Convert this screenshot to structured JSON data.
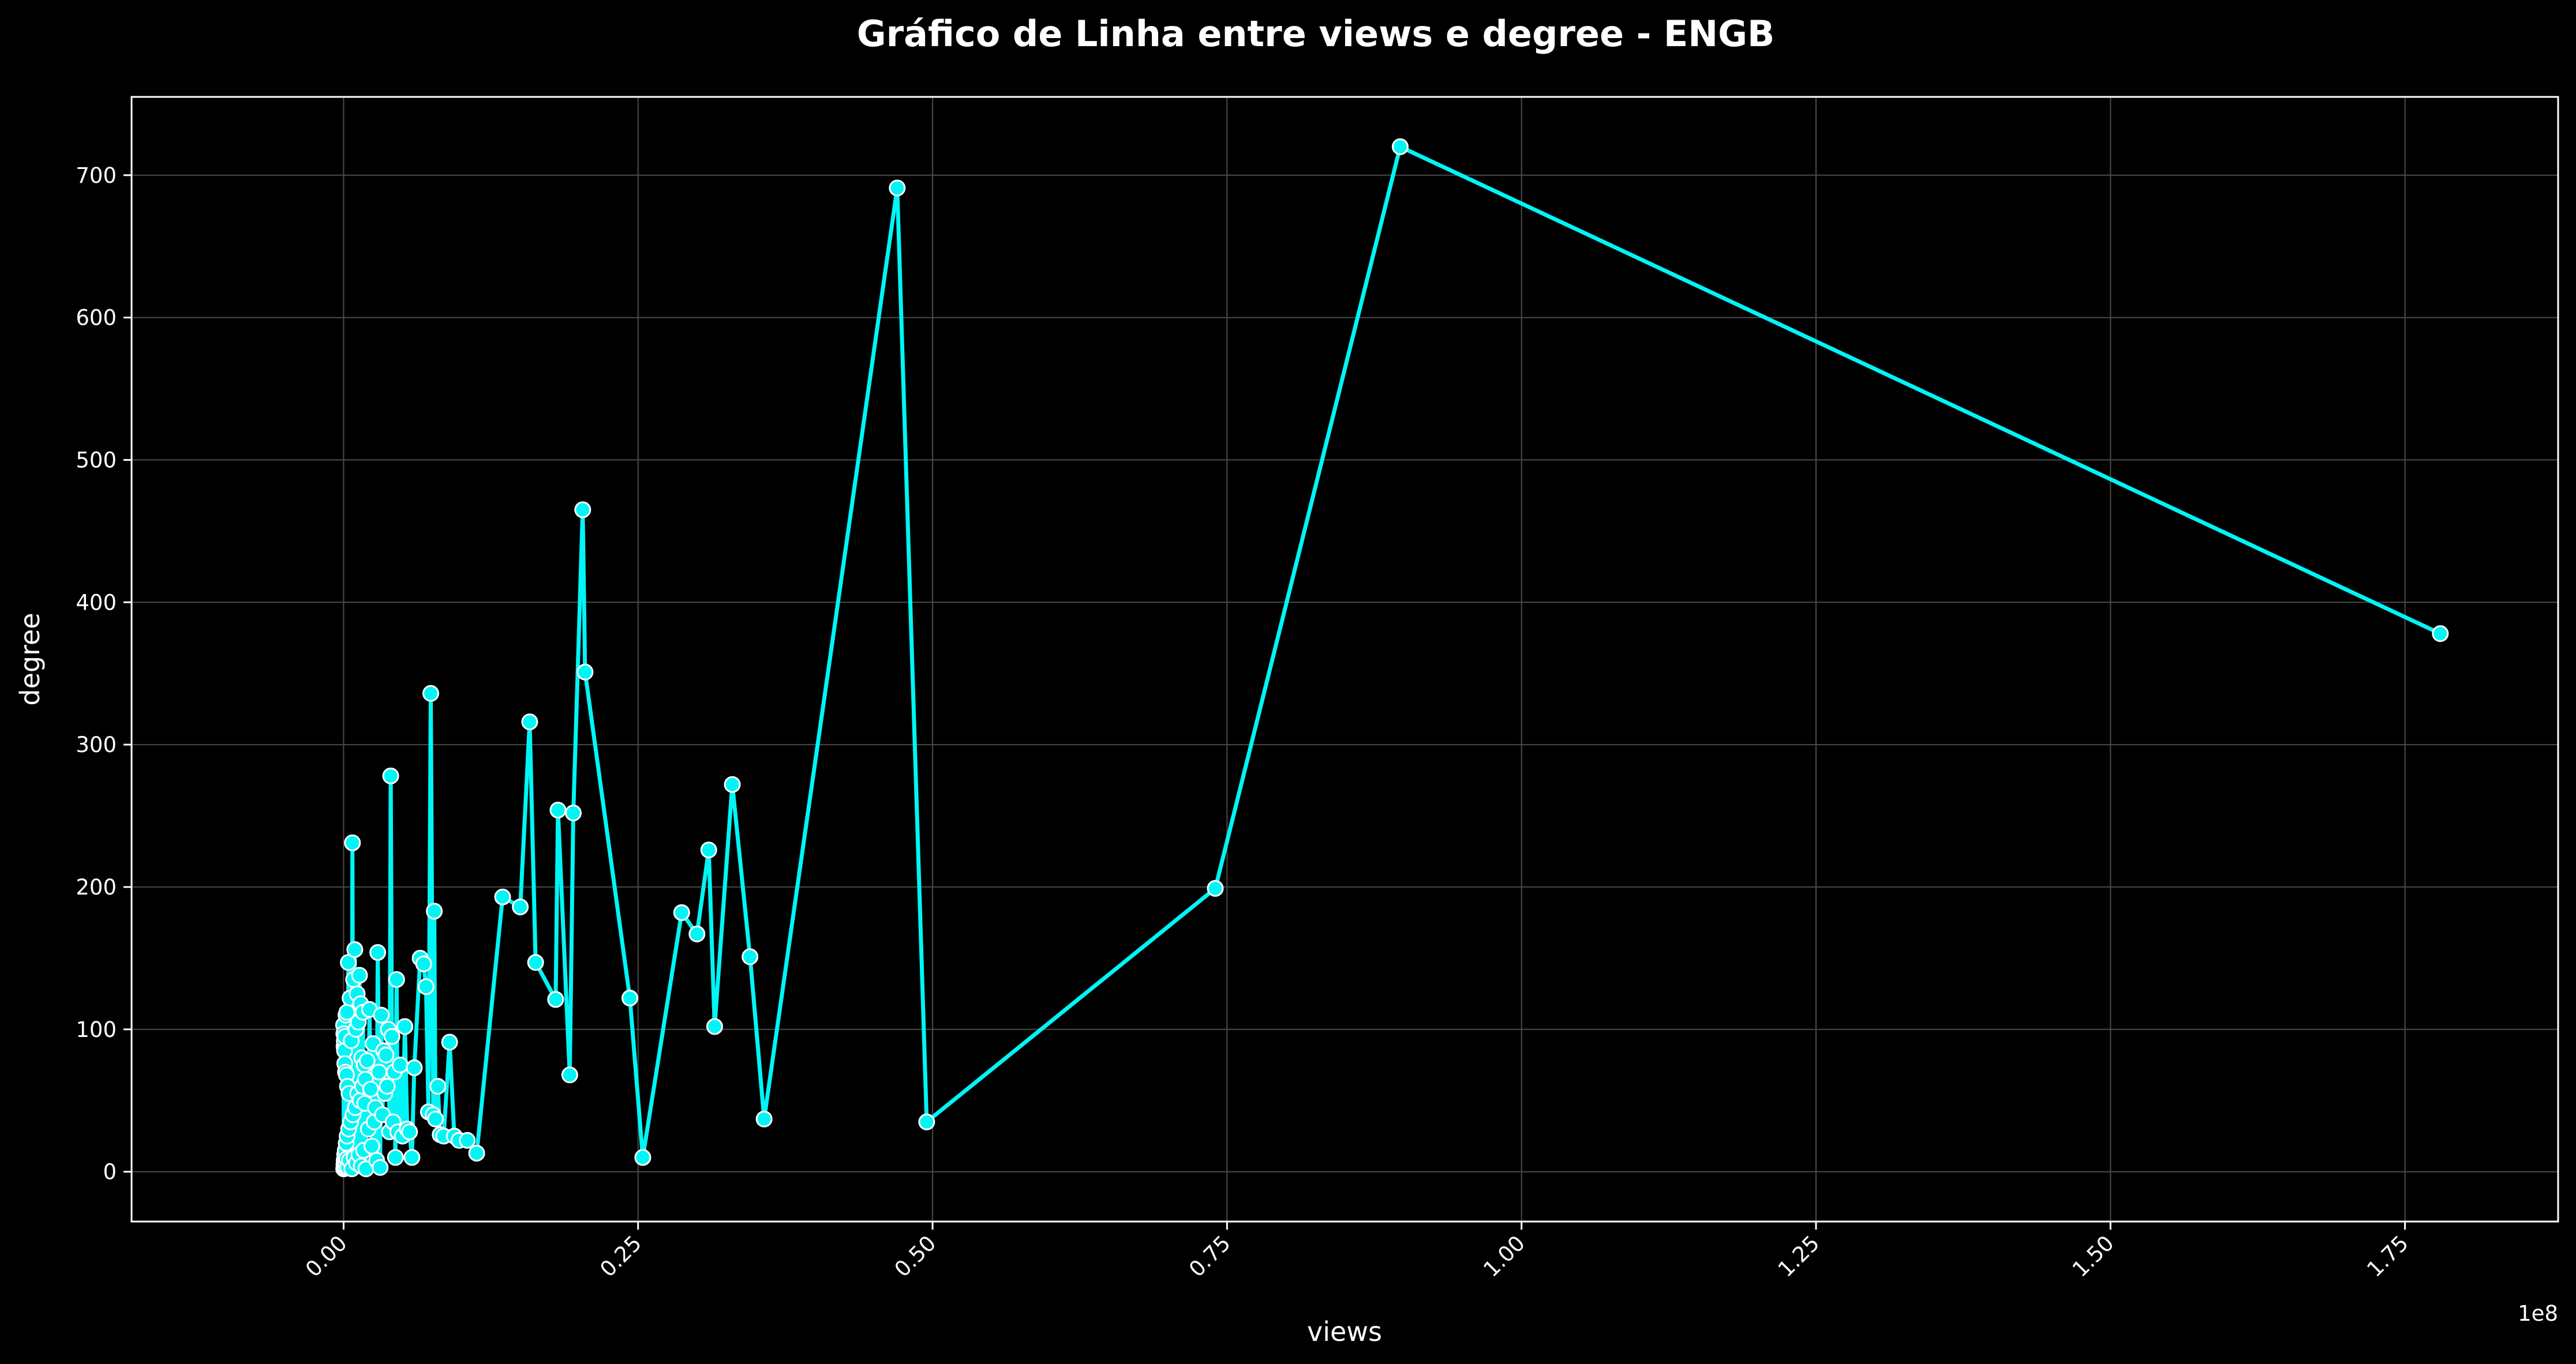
{
  "chart_data": {
    "type": "line",
    "title": "Gráfico de Linha entre views e degree - ENGB",
    "xlabel": "views",
    "ylabel": "degree",
    "x_offset_label": "1e8",
    "xlim": [
      -0.18,
      1.88
    ],
    "ylim": [
      -35,
      755
    ],
    "x_ticks": [
      0.0,
      0.25,
      0.5,
      0.75,
      1.0,
      1.25,
      1.5,
      1.75
    ],
    "x_tick_labels": [
      "0.00",
      "0.25",
      "0.50",
      "0.75",
      "1.00",
      "1.25",
      "1.50",
      "1.75"
    ],
    "y_ticks": [
      0,
      100,
      200,
      300,
      400,
      500,
      600,
      700
    ],
    "y_tick_labels": [
      "0",
      "100",
      "200",
      "300",
      "400",
      "500",
      "600",
      "700"
    ],
    "grid": true,
    "colors": {
      "line": "#00f5f5",
      "marker_face": "#00f5f5",
      "marker_edge": "#ffffff",
      "background": "#000000",
      "grid": "#4a4a4a"
    },
    "series": [
      {
        "x": [
          0.0,
          0.0001,
          0.0002,
          0.0003,
          0.0004,
          0.0005,
          0.0006,
          0.0007,
          0.0008,
          0.0009,
          0.001,
          0.0011,
          0.0012,
          0.0014,
          0.0016,
          0.0018,
          0.002,
          0.0022,
          0.0024,
          0.0026,
          0.0028,
          0.003,
          0.0033,
          0.0036,
          0.004,
          0.0043,
          0.0046,
          0.005,
          0.0055,
          0.006,
          0.0065,
          0.007,
          0.0075,
          0.008,
          0.0085,
          0.009,
          0.0095,
          0.01,
          0.0105,
          0.011,
          0.0115,
          0.012,
          0.0125,
          0.013,
          0.0135,
          0.014,
          0.0145,
          0.015,
          0.0155,
          0.016,
          0.0165,
          0.017,
          0.0175,
          0.018,
          0.0185,
          0.019,
          0.02,
          0.021,
          0.022,
          0.023,
          0.024,
          0.025,
          0.026,
          0.027,
          0.028,
          0.029,
          0.03,
          0.031,
          0.032,
          0.033,
          0.034,
          0.035,
          0.036,
          0.037,
          0.038,
          0.039,
          0.04,
          0.041,
          0.042,
          0.043,
          0.044,
          0.045,
          0.046,
          0.048,
          0.05,
          0.052,
          0.054,
          0.056,
          0.058,
          0.06,
          0.065,
          0.068,
          0.07,
          0.072,
          0.074,
          0.076,
          0.077,
          0.078,
          0.08,
          0.082,
          0.085,
          0.09,
          0.094,
          0.098,
          0.105,
          0.113,
          0.135,
          0.15,
          0.158,
          0.163,
          0.18,
          0.182,
          0.192,
          0.195,
          0.203,
          0.205,
          0.243,
          0.254,
          0.287,
          0.3,
          0.31,
          0.315,
          0.33,
          0.345,
          0.357,
          0.47,
          0.495,
          0.74,
          0.897,
          1.78
        ],
        "y": [
          103,
          2,
          97,
          5,
          88,
          8,
          92,
          3,
          85,
          12,
          76,
          4,
          95,
          15,
          70,
          6,
          110,
          20,
          68,
          9,
          112,
          25,
          60,
          3,
          147,
          30,
          55,
          8,
          122,
          35,
          92,
          2,
          231,
          40,
          135,
          10,
          156,
          45,
          100,
          6,
          125,
          55,
          105,
          12,
          138,
          50,
          118,
          4,
          80,
          60,
          112,
          15,
          75,
          48,
          65,
          2,
          78,
          30,
          114,
          58,
          18,
          90,
          35,
          45,
          8,
          154,
          70,
          3,
          110,
          40,
          85,
          55,
          82,
          60,
          100,
          28,
          278,
          95,
          35,
          70,
          10,
          135,
          28,
          75,
          25,
          102,
          30,
          28,
          10,
          73,
          150,
          146,
          130,
          42,
          336,
          40,
          183,
          37,
          60,
          26,
          25,
          91,
          25,
          22,
          22,
          13,
          193,
          186,
          316,
          147,
          121,
          254,
          68,
          252,
          465,
          351,
          122,
          10,
          182,
          167,
          226,
          102,
          272,
          151,
          37,
          691,
          35,
          199,
          720,
          378
        ]
      }
    ]
  }
}
